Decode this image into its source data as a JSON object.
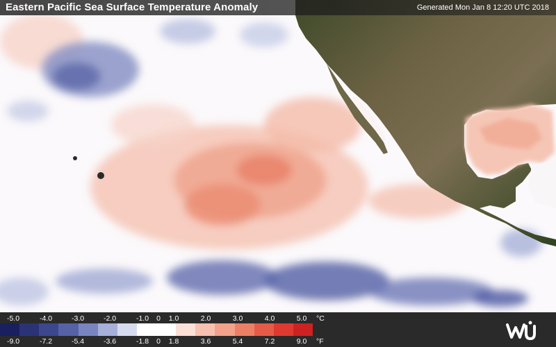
{
  "header": {
    "title": "Eastern Pacific Sea Surface Temperature Anomaly",
    "generated": "Generated Mon Jan  8 12:20 UTC 2018"
  },
  "legend": {
    "celsius_unit": "°C",
    "fahrenheit_unit": "°F",
    "celsius_ticks": [
      "-5.0",
      "-4.0",
      "-3.0",
      "-2.0",
      "-1.0",
      "0",
      "1.0",
      "2.0",
      "3.0",
      "4.0",
      "5.0"
    ],
    "fahrenheit_ticks": [
      "-9.0",
      "-7.2",
      "-5.4",
      "-3.6",
      "-1.8",
      "0",
      "1.8",
      "3.6",
      "5.4",
      "7.2",
      "9.0"
    ],
    "colors": [
      "#1a1f5e",
      "#2b3376",
      "#3c478e",
      "#5562a6",
      "#7985bf",
      "#a7b0d8",
      "#d6dbef",
      "#ffffff",
      "#ffffff",
      "#fbe0d8",
      "#f6c1b0",
      "#f2a28a",
      "#ec8066",
      "#e65b48",
      "#de3a32",
      "#cc2222"
    ]
  },
  "logo": {
    "name": "wu-logo"
  },
  "colors": {
    "land": "#5a5a3a",
    "warm_anomaly": "#f2a28a",
    "cold_anomaly": "#5562a6"
  }
}
